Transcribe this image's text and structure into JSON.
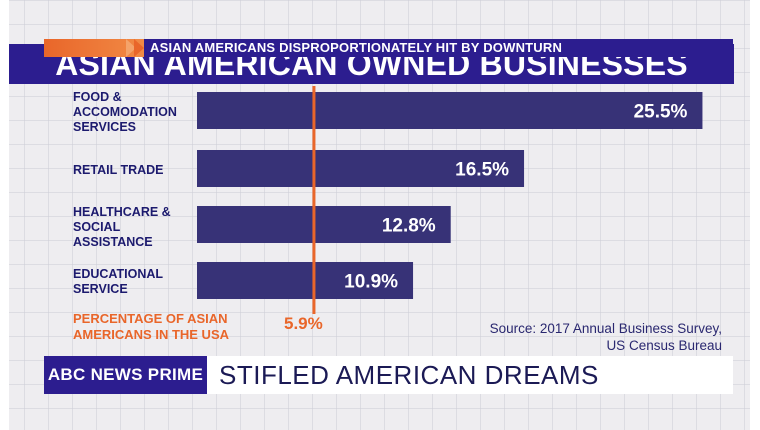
{
  "title": "ASIAN AMERICAN OWNED BUSINESSES",
  "chart_data": {
    "type": "bar",
    "orientation": "horizontal",
    "categories": [
      "FOOD &\nACCOMODATION\nSERVICES",
      "RETAIL TRADE",
      "HEALTHCARE &\nSOCIAL\nASSISTANCE",
      "EDUCATIONAL\nSERVICE"
    ],
    "values": [
      25.5,
      16.5,
      12.8,
      10.9
    ],
    "value_labels": [
      "25.5%",
      "16.5%",
      "12.8%",
      "10.9%"
    ],
    "reference_line": {
      "label": "PERCENTAGE OF ASIAN\nAMERICANS IN THE USA",
      "value": 5.9,
      "value_label": "5.9%"
    },
    "xlim": [
      0,
      28
    ],
    "grid": false,
    "bar_color": "#373277",
    "reference_color": "#e9662a",
    "source": "Source: 2017 Annual Business Survey,\nUS Census Bureau"
  },
  "lower_third": {
    "network": "ABC NEWS PRIME",
    "headline": "STIFLED AMERICAN DREAMS",
    "ticker": "ASIAN AMERICANS DISPROPORTIONATELY HIT BY DOWNTURN"
  },
  "colors": {
    "title_bar": "#2c1d8f",
    "label_text": "#1c1a6e",
    "accent_orange": "#e9662a"
  }
}
